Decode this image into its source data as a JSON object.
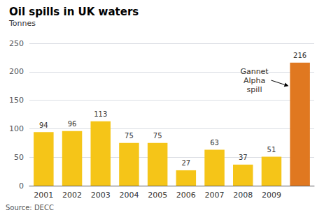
{
  "chart_data": {
    "type": "bar",
    "title": "Oil spills in UK waters",
    "ylabel": "Tonnes",
    "source": "Source: DECC",
    "categories": [
      "2001",
      "2002",
      "2003",
      "2004",
      "2005",
      "2006",
      "2007",
      "2008",
      "2009",
      null
    ],
    "values": [
      94,
      96,
      113,
      75,
      75,
      27,
      63,
      37,
      51,
      216
    ],
    "colors": [
      "#F5C518",
      "#F5C518",
      "#F5C518",
      "#F5C518",
      "#F5C518",
      "#F5C518",
      "#F5C518",
      "#F5C518",
      "#F5C518",
      "#E07820"
    ],
    "ylim": [
      0,
      250
    ],
    "yticks": [
      0,
      50,
      100,
      150,
      200,
      250
    ],
    "grid": true,
    "data_labels": true,
    "annotation": "Gannet\nAlpha\nspill"
  }
}
